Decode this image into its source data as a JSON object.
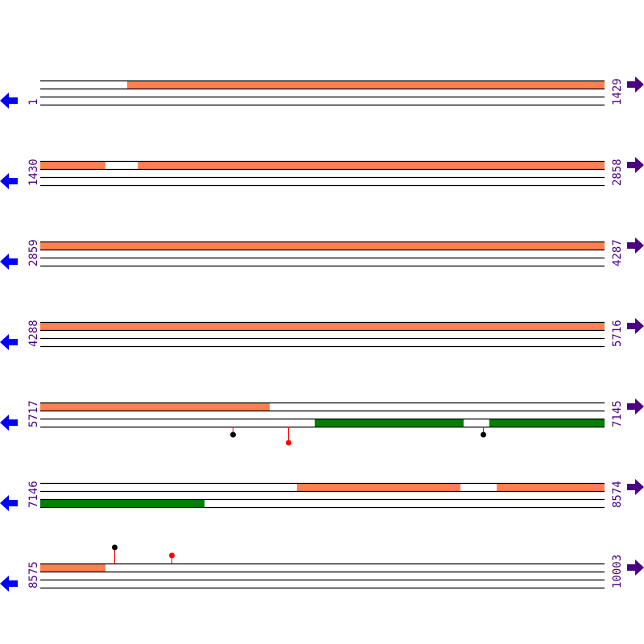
{
  "colors": {
    "feature_forward": "#ff8050",
    "feature_reverse": "#008000",
    "line": "#000000",
    "left_arrow": "#0000ff",
    "right_arrow": "#4b0082",
    "label": "#4b0082",
    "marker_black": "#000000",
    "marker_red": "#ff0000",
    "stem_red": "#ff0000"
  },
  "icons": {
    "left": "arrow-left-icon",
    "right": "arrow-right-icon"
  },
  "rows": [
    {
      "start": "1",
      "end": "1429"
    },
    {
      "start": "1430",
      "end": "2858"
    },
    {
      "start": "2859",
      "end": "4287"
    },
    {
      "start": "4288",
      "end": "5716"
    },
    {
      "start": "5717",
      "end": "7145"
    },
    {
      "start": "7146",
      "end": "8574"
    },
    {
      "start": "8575",
      "end": "10003"
    }
  ],
  "features": [
    {
      "track": "forward",
      "from": 221,
      "to": 1595
    },
    {
      "track": "forward",
      "from": 1677,
      "to": 6298
    },
    {
      "track": "reverse",
      "from": 6412,
      "to": 6789
    },
    {
      "track": "reverse",
      "from": 6854,
      "to": 7562
    },
    {
      "track": "forward",
      "from": 7796,
      "to": 8210
    },
    {
      "track": "forward",
      "from": 8302,
      "to": 8740
    }
  ],
  "markers": [
    {
      "pos": 6204,
      "side": "below",
      "level": 1,
      "color": "black"
    },
    {
      "pos": 6345,
      "side": "below",
      "level": 2,
      "color": "red"
    },
    {
      "pos": 6838,
      "side": "below",
      "level": 1,
      "color": "black"
    },
    {
      "pos": 8762,
      "side": "above",
      "level": 2,
      "color": "black"
    },
    {
      "pos": 8907,
      "side": "above",
      "level": 1,
      "color": "red"
    }
  ]
}
